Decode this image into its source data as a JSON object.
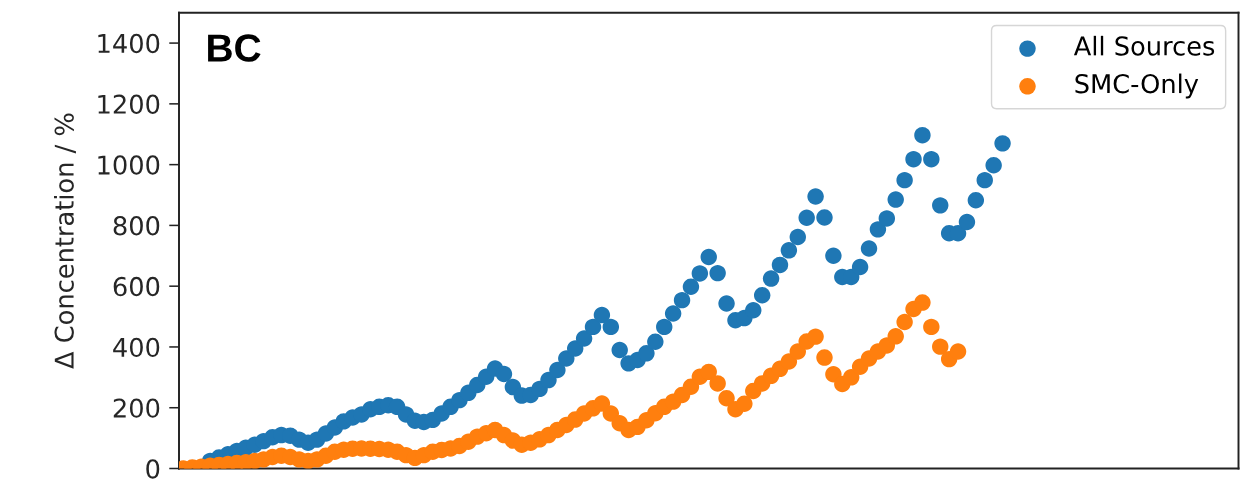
{
  "chart_data": {
    "type": "scatter",
    "ylabel": "Δ Concentration / %",
    "annotations": [
      "BC"
    ],
    "categories": [
      null,
      null,
      null,
      null,
      null,
      null,
      null,
      null,
      null,
      null,
      null,
      null,
      null,
      null,
      null,
      null,
      null,
      null,
      null,
      null,
      null,
      null,
      null,
      null,
      null,
      null,
      null,
      null,
      null,
      null,
      null,
      null,
      null,
      null,
      null,
      null,
      null,
      null,
      null,
      null,
      null,
      null,
      null,
      null,
      null,
      null,
      null,
      null,
      null,
      null,
      null,
      null,
      null,
      null,
      null,
      null,
      null,
      null,
      null,
      null,
      null,
      null,
      null,
      null,
      null,
      null,
      null,
      null,
      null,
      null,
      null,
      null,
      null,
      null,
      null,
      null,
      null,
      null,
      null,
      null,
      null,
      null,
      null,
      null,
      null,
      null,
      null,
      null,
      null,
      null,
      null,
      null,
      null,
      null,
      null,
      null,
      null,
      null,
      null,
      null,
      null,
      null,
      null,
      null,
      null,
      null,
      null,
      null,
      null,
      null,
      null,
      null,
      null,
      null,
      null,
      null,
      null,
      null,
      null
    ],
    "series": [
      {
        "name": "All Sources",
        "color": "#1f77b4",
        "values": [
          null,
          null,
          null,
          25,
          36,
          47,
          58,
          68,
          78,
          90,
          103,
          110,
          108,
          95,
          85,
          95,
          115,
          135,
          155,
          168,
          178,
          195,
          203,
          208,
          203,
          178,
          157,
          153,
          160,
          181,
          203,
          225,
          249,
          275,
          302,
          329,
          311,
          268,
          240,
          242,
          262,
          291,
          324,
          362,
          395,
          428,
          466,
          505,
          466,
          390,
          346,
          357,
          379,
          417,
          466,
          510,
          554,
          598,
          642,
          696,
          643,
          543,
          488,
          495,
          521,
          570,
          625,
          670,
          718,
          762,
          825,
          895,
          826,
          700,
          630,
          630,
          663,
          724,
          787,
          823,
          885,
          949,
          1018,
          1097,
          1018,
          866,
          774,
          774,
          811,
          883,
          949,
          998,
          1070,
          null,
          null,
          null,
          null,
          null,
          null,
          null,
          null,
          null,
          null,
          null,
          null,
          null,
          null,
          null,
          null,
          null,
          null,
          null,
          null,
          null,
          null,
          null,
          null,
          null,
          null
        ]
      },
      {
        "name": "SMC-Only",
        "color": "#ff7f0e",
        "values": [
          0,
          3,
          6,
          9,
          12,
          15,
          18,
          21,
          25,
          30,
          38,
          42,
          38,
          30,
          25,
          30,
          42,
          55,
          62,
          65,
          66,
          65,
          64,
          62,
          55,
          44,
          35,
          44,
          55,
          61,
          66,
          74,
          88,
          105,
          116,
          127,
          110,
          92,
          78,
          85,
          96,
          110,
          127,
          143,
          161,
          181,
          198,
          214,
          181,
          149,
          127,
          137,
          159,
          182,
          203,
          220,
          242,
          269,
          302,
          318,
          280,
          231,
          195,
          213,
          255,
          280,
          305,
          328,
          352,
          385,
          418,
          434,
          365,
          310,
          278,
          300,
          335,
          362,
          385,
          405,
          435,
          482,
          525,
          546,
          466,
          401,
          360,
          385,
          null,
          null,
          null,
          null,
          null,
          null,
          null,
          null,
          null,
          null,
          null,
          null,
          null,
          null,
          null,
          null,
          null,
          null,
          null,
          null,
          null,
          null,
          null,
          null,
          null,
          null,
          null,
          null,
          null,
          null,
          null
        ]
      }
    ],
    "ylim": [
      0,
      1500
    ],
    "yticks": [
      0,
      200,
      400,
      600,
      800,
      1000,
      1200,
      1400
    ],
    "legend": "top right",
    "marker": "circle"
  }
}
